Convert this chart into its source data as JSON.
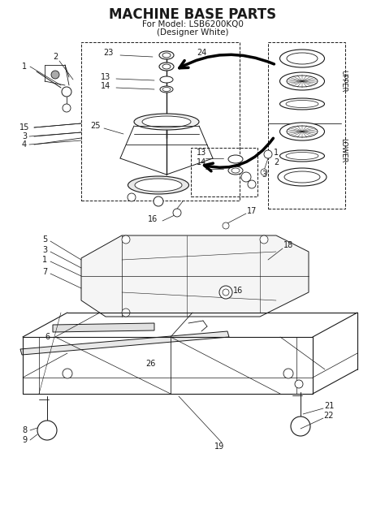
{
  "title": "MACHINE BASE PARTS",
  "subtitle1": "For Model: LSB6200KQ0",
  "subtitle2": "(Designer White)",
  "bg_color": "#ffffff",
  "line_color": "#1a1a1a",
  "title_fontsize": 11,
  "subtitle_fontsize": 7,
  "label_fontsize": 7,
  "upper_label": "UPPER",
  "lower_label": "LOWER"
}
